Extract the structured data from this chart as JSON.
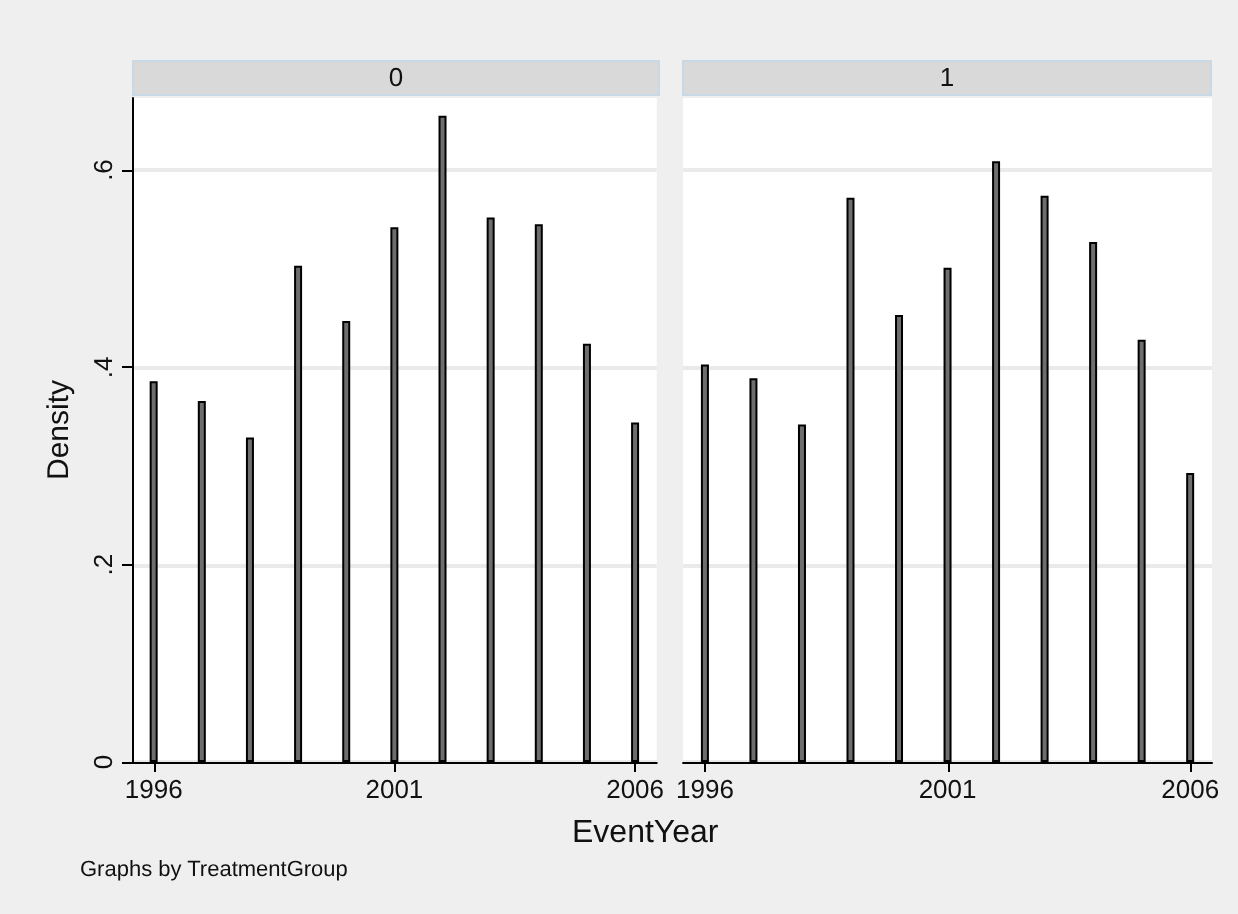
{
  "chart_data": [
    {
      "type": "bar",
      "title": "0",
      "xlabel": "EventYear",
      "ylabel": "Density",
      "annotations": [
        "Graphs by TreatmentGroup"
      ],
      "x": [
        1996,
        1997,
        1998,
        1999,
        2000,
        2001,
        2002,
        2003,
        2004,
        2005,
        2006
      ],
      "values": [
        0.386,
        0.366,
        0.329,
        0.503,
        0.447,
        0.542,
        0.655,
        0.552,
        0.545,
        0.424,
        0.344
      ],
      "color": "#6e6e6e",
      "xlim": [
        1995.55,
        2006.45
      ],
      "xticks": [
        1996,
        2001,
        2006
      ],
      "ylim": [
        0,
        0.673
      ],
      "yticks": [
        0,
        {
          "value": 0.2,
          "label": ".2"
        },
        {
          "value": 0.4,
          "label": ".4"
        },
        {
          "value": 0.6,
          "label": ".6"
        }
      ],
      "grid": "y"
    },
    {
      "type": "bar",
      "title": "1",
      "x": [
        1996,
        1997,
        1998,
        1999,
        2000,
        2001,
        2002,
        2003,
        2004,
        2005,
        2006
      ],
      "values": [
        0.403,
        0.389,
        0.342,
        0.572,
        0.453,
        0.501,
        0.609,
        0.574,
        0.527,
        0.428,
        0.293
      ],
      "color": "#6e6e6e",
      "xlim": [
        1995.55,
        2006.45
      ],
      "xticks": [
        1996,
        2001,
        2006
      ],
      "ylim": [
        0,
        0.673
      ],
      "yticks": [
        0,
        0.2,
        0.4,
        0.6
      ],
      "grid": "y",
      "tick_labels": "x"
    }
  ]
}
